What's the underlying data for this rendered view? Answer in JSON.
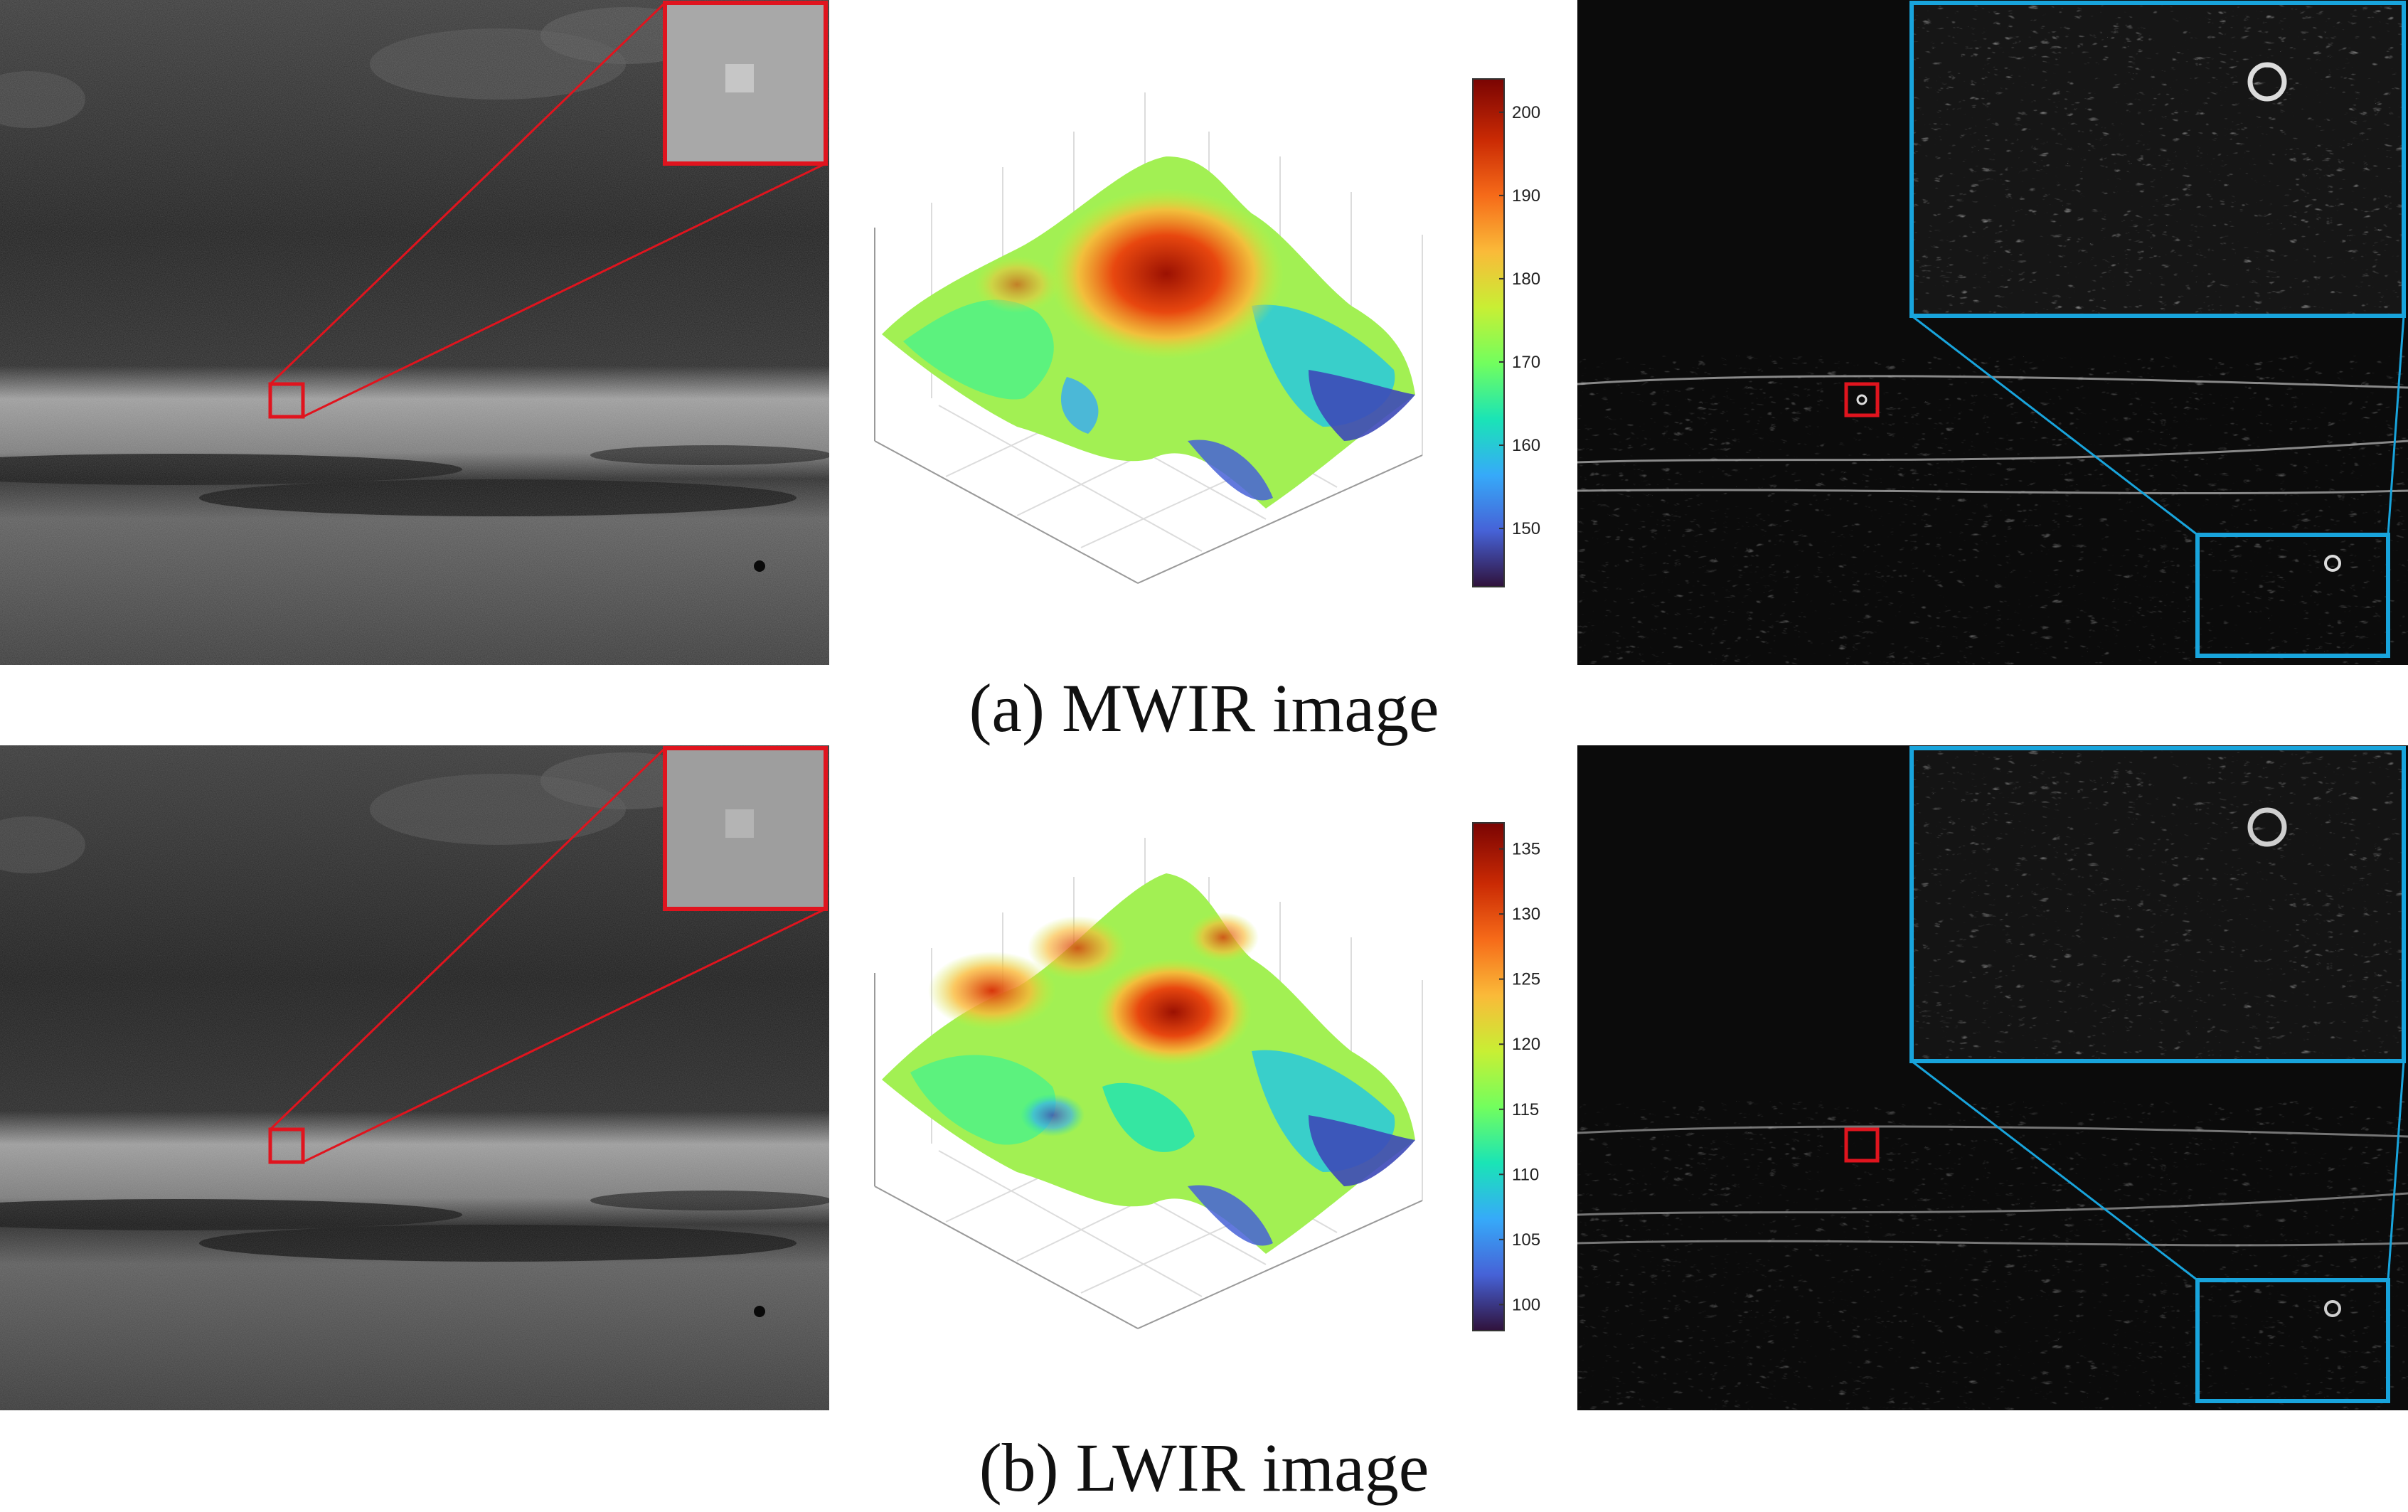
{
  "row_a": {
    "caption": "(a) MWIR image",
    "colorbar_ticks": [
      "200",
      "190",
      "180",
      "170",
      "160",
      "150"
    ],
    "colorbar_range": [
      143,
      204
    ]
  },
  "row_b": {
    "caption": "(b) LWIR image",
    "colorbar_ticks": [
      "135",
      "130",
      "125",
      "120",
      "115",
      "110",
      "105",
      "100"
    ],
    "colorbar_range": [
      98,
      137
    ]
  },
  "colors": {
    "target_box": "#e0141e",
    "zoom_box": "#18a4dc",
    "colormap": [
      "#30123b",
      "#4662d7",
      "#36aaf9",
      "#1ae4b6",
      "#72fe5e",
      "#c8ef34",
      "#faba39",
      "#f66b19",
      "#ca2a04",
      "#7a0403"
    ]
  }
}
